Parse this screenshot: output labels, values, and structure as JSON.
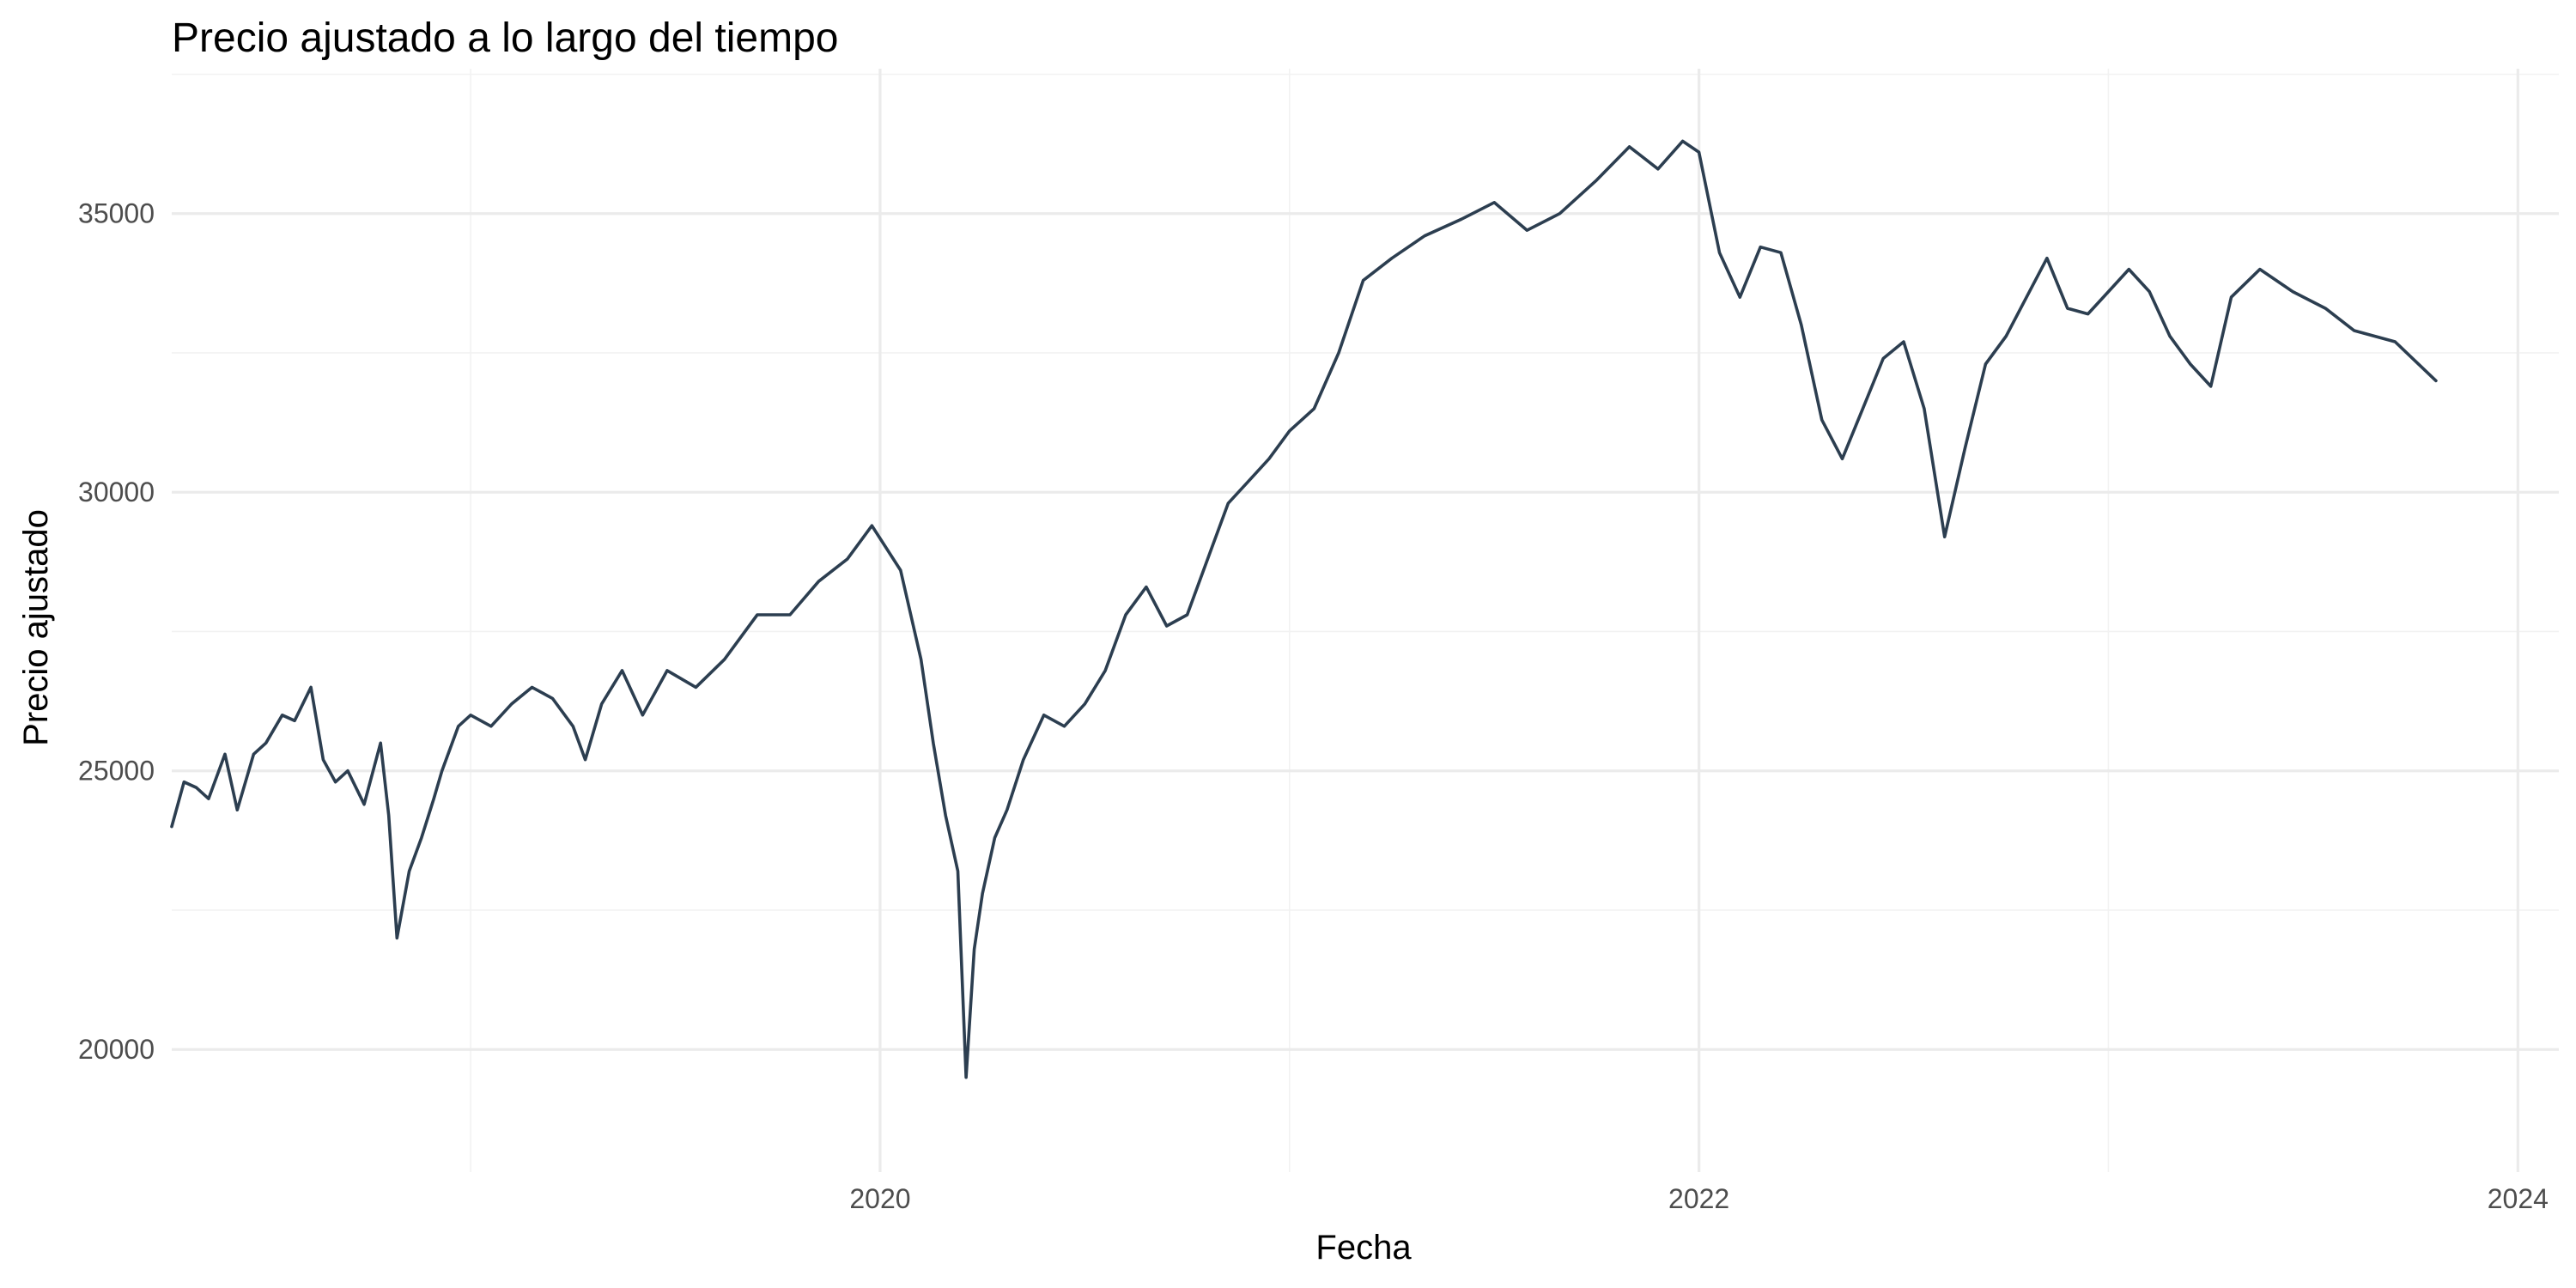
{
  "chart_data": {
    "type": "line",
    "title": "Precio ajustado a lo largo del tiempo",
    "xlabel": "Fecha",
    "ylabel": "Precio ajustado",
    "x_ticks": [
      "2020",
      "2022",
      "2024"
    ],
    "y_ticks": [
      "20000",
      "25000",
      "30000",
      "35000"
    ],
    "xlim": [
      2018.27,
      2024.1
    ],
    "ylim": [
      17800,
      37600
    ],
    "grid": true,
    "legend": "none",
    "colors": {
      "series": "#2c3e50",
      "grid": "#ebebeb",
      "tick_text": "#4d4d4d"
    },
    "series": [
      {
        "x": [
          2018.27,
          2018.3,
          2018.33,
          2018.36,
          2018.4,
          2018.43,
          2018.47,
          2018.5,
          2018.54,
          2018.57,
          2018.61,
          2018.64,
          2018.67,
          2018.7,
          2018.74,
          2018.78,
          2018.8,
          2018.82,
          2018.85,
          2018.88,
          2018.91,
          2018.93,
          2018.97,
          2019.0,
          2019.05,
          2019.1,
          2019.15,
          2019.2,
          2019.25,
          2019.28,
          2019.32,
          2019.37,
          2019.42,
          2019.48,
          2019.55,
          2019.62,
          2019.7,
          2019.78,
          2019.85,
          2019.92,
          2019.98,
          2020.05,
          2020.1,
          2020.13,
          2020.16,
          2020.19,
          2020.21,
          2020.23,
          2020.25,
          2020.28,
          2020.31,
          2020.35,
          2020.4,
          2020.45,
          2020.5,
          2020.55,
          2020.6,
          2020.65,
          2020.7,
          2020.75,
          2020.8,
          2020.85,
          2020.9,
          2020.95,
          2021.0,
          2021.06,
          2021.12,
          2021.18,
          2021.25,
          2021.33,
          2021.42,
          2021.5,
          2021.58,
          2021.66,
          2021.75,
          2021.83,
          2021.9,
          2021.96,
          2022.0,
          2022.05,
          2022.1,
          2022.15,
          2022.2,
          2022.25,
          2022.3,
          2022.35,
          2022.4,
          2022.45,
          2022.5,
          2022.55,
          2022.6,
          2022.65,
          2022.7,
          2022.75,
          2022.8,
          2022.85,
          2022.9,
          2022.95,
          2023.0,
          2023.05,
          2023.1,
          2023.15,
          2023.2,
          2023.25,
          2023.3,
          2023.37,
          2023.45,
          2023.53,
          2023.6,
          2023.7,
          2023.8
        ],
        "y": [
          24000,
          24800,
          24700,
          24500,
          25300,
          24300,
          25300,
          25500,
          26000,
          25900,
          26500,
          25200,
          24800,
          25000,
          24400,
          25500,
          24200,
          22000,
          23200,
          23800,
          24500,
          25000,
          25800,
          26000,
          25800,
          26200,
          26500,
          26300,
          25800,
          25200,
          26200,
          26800,
          26000,
          26800,
          26500,
          27000,
          27800,
          27800,
          28400,
          28800,
          29400,
          28600,
          27000,
          25500,
          24200,
          23200,
          19500,
          21800,
          22800,
          23800,
          24300,
          25200,
          26000,
          25800,
          26200,
          26800,
          27800,
          28300,
          27600,
          27800,
          28800,
          29800,
          30200,
          30600,
          31100,
          31500,
          32500,
          33800,
          34200,
          34600,
          34900,
          35200,
          34700,
          35000,
          35600,
          36200,
          35800,
          36300,
          36100,
          34300,
          33500,
          34400,
          34300,
          33000,
          31300,
          30600,
          31500,
          32400,
          32700,
          31500,
          29200,
          30800,
          32300,
          32800,
          33500,
          34200,
          33300,
          33200,
          33600,
          34000,
          33600,
          32800,
          32300,
          31900,
          33500,
          34000,
          33600,
          33300,
          32900,
          32700,
          32000
        ]
      }
    ]
  }
}
